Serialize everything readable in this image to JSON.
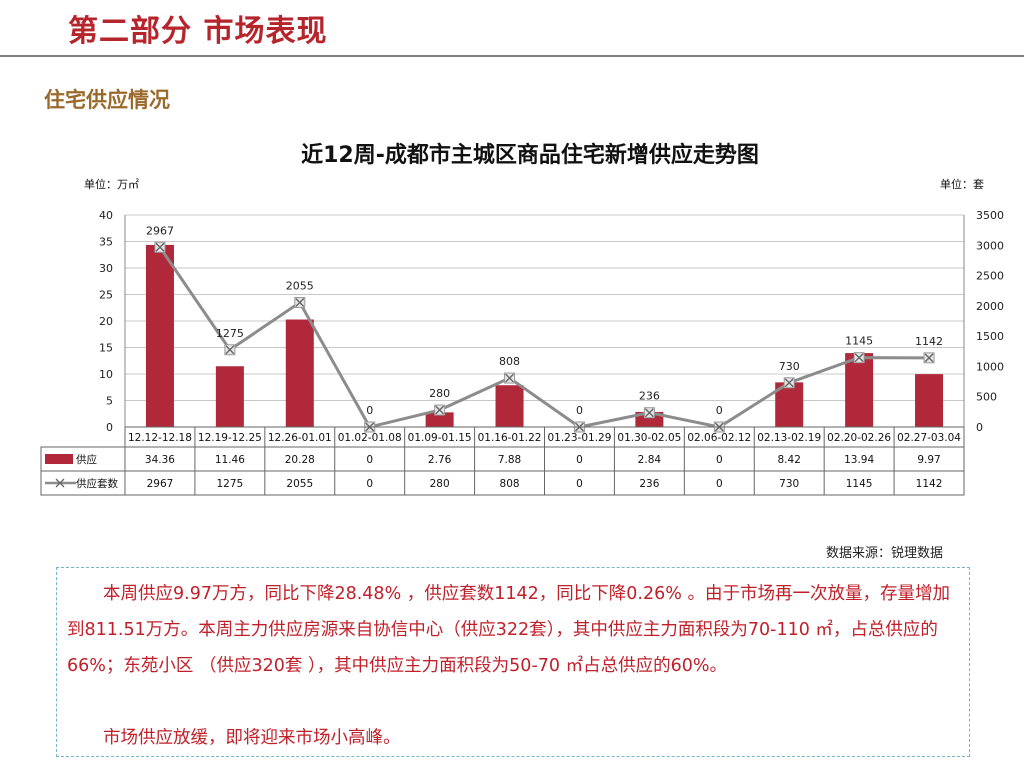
{
  "header": {
    "page_title": "第二部分 市场表现",
    "section_title": "住宅供应情况"
  },
  "chart_data": {
    "type": "bar",
    "title": "近12周-成都市主城区商品住宅新增供应走势图",
    "unit_left": "单位：万㎡",
    "unit_right": "单位：套",
    "categories": [
      "12.12-12.18",
      "12.19-12.25",
      "12.26-01.01",
      "01.02-01.08",
      "01.09-01.15",
      "01.16-01.22",
      "01.23-01.29",
      "01.30-02.05",
      "02.06-02.12",
      "02.13-02.19",
      "02.20-02.26",
      "02.27-03.04"
    ],
    "series": [
      {
        "name": "供应",
        "type": "bar",
        "axis": "left",
        "color": "#b0283a",
        "values": [
          34.36,
          11.46,
          20.28,
          0,
          2.76,
          7.88,
          0,
          2.84,
          0,
          8.42,
          13.94,
          9.97
        ]
      },
      {
        "name": "供应套数",
        "type": "line",
        "axis": "right",
        "color": "#8c8c8c",
        "values": [
          2967,
          1275,
          2055,
          0,
          280,
          808,
          0,
          236,
          0,
          730,
          1145,
          1142
        ]
      }
    ],
    "y_left": {
      "range": [
        0,
        40
      ],
      "ticks": [
        0,
        5,
        10,
        15,
        20,
        25,
        30,
        35,
        40
      ]
    },
    "y_right": {
      "range": [
        0,
        3500
      ],
      "ticks": [
        0,
        500,
        1000,
        1500,
        2000,
        2500,
        3000,
        3500
      ]
    },
    "grid": true,
    "data_table": true
  },
  "source": "数据来源：锐理数据",
  "commentary": {
    "para1": "本周供应9.97万方，同比下降28.48% ，供应套数1142，同比下降0.26% 。由于市场再一次放量，存量增加到811.51万方。本周主力供应房源来自协信中心（供应322套），其中供应主力面积段为70-110 ㎡，占总供应的66%；东苑小区 （供应320套 ），其中供应主力面积段为50-70 ㎡占总供应的60%。",
    "para2": "市场供应放缓，即将迎来市场小高峰。"
  }
}
